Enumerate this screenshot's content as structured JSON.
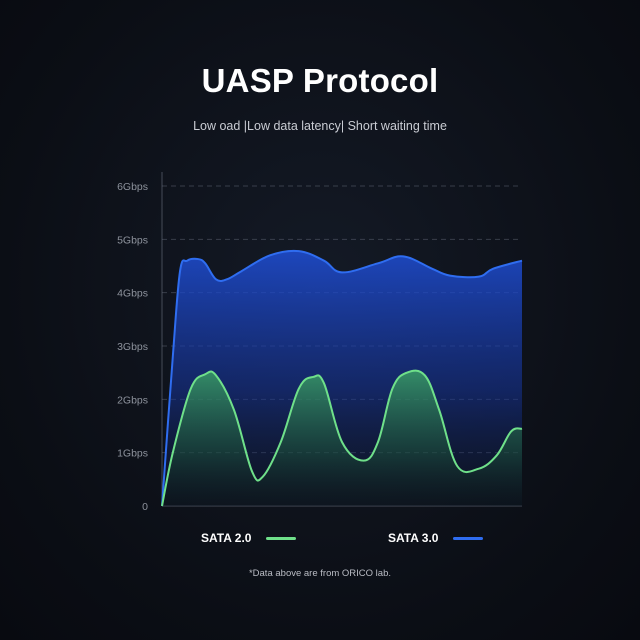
{
  "title": "UASP Protocol",
  "subtitle": "Low oad |Low data latency| Short waiting time",
  "footnote": "*Data above are from ORICO lab.",
  "colors": {
    "sata2": "#6fe08a",
    "sata3": "#2f6df0",
    "grid": "#6b7180",
    "tick_text": "#8d929c"
  },
  "chart_data": {
    "type": "area",
    "title": "",
    "xlabel": "",
    "ylabel": "",
    "ylim": [
      0,
      6
    ],
    "xlim": [
      0,
      1
    ],
    "y_ticks": [
      0,
      1,
      2,
      3,
      4,
      5,
      6
    ],
    "y_tick_labels": [
      "0",
      "1Gbps",
      "2Gbps",
      "3Gbps",
      "4Gbps",
      "5Gbps",
      "6Gbps"
    ],
    "grid": true,
    "legend_position": "bottom",
    "series": [
      {
        "name": "SATA 3.0",
        "color": "#2f6df0",
        "x": [
          0,
          0.03,
          0.05,
          0.07,
          0.1,
          0.12,
          0.15,
          0.18,
          0.22,
          0.3,
          0.38,
          0.45,
          0.5,
          0.6,
          0.67,
          0.75,
          0.8,
          0.88,
          0.92,
          1.0
        ],
        "values": [
          0,
          2.8,
          4.4,
          4.6,
          4.63,
          4.55,
          4.25,
          4.25,
          4.4,
          4.7,
          4.78,
          4.6,
          4.38,
          4.55,
          4.68,
          4.45,
          4.32,
          4.3,
          4.45,
          4.6
        ]
      },
      {
        "name": "SATA 2.0",
        "color": "#6fe08a",
        "x": [
          0,
          0.03,
          0.08,
          0.12,
          0.15,
          0.2,
          0.25,
          0.28,
          0.33,
          0.38,
          0.42,
          0.45,
          0.5,
          0.56,
          0.6,
          0.64,
          0.68,
          0.73,
          0.77,
          0.82,
          0.88,
          0.93,
          0.97,
          1.0
        ],
        "values": [
          0,
          1.0,
          2.2,
          2.47,
          2.45,
          1.8,
          0.65,
          0.55,
          1.2,
          2.2,
          2.42,
          2.3,
          1.2,
          0.85,
          1.2,
          2.2,
          2.5,
          2.45,
          1.8,
          0.75,
          0.7,
          0.95,
          1.4,
          1.45
        ]
      }
    ]
  },
  "legend": [
    {
      "label": "SATA 2.0",
      "color": "#6fe08a"
    },
    {
      "label": "SATA 3.0",
      "color": "#2f6df0"
    }
  ]
}
